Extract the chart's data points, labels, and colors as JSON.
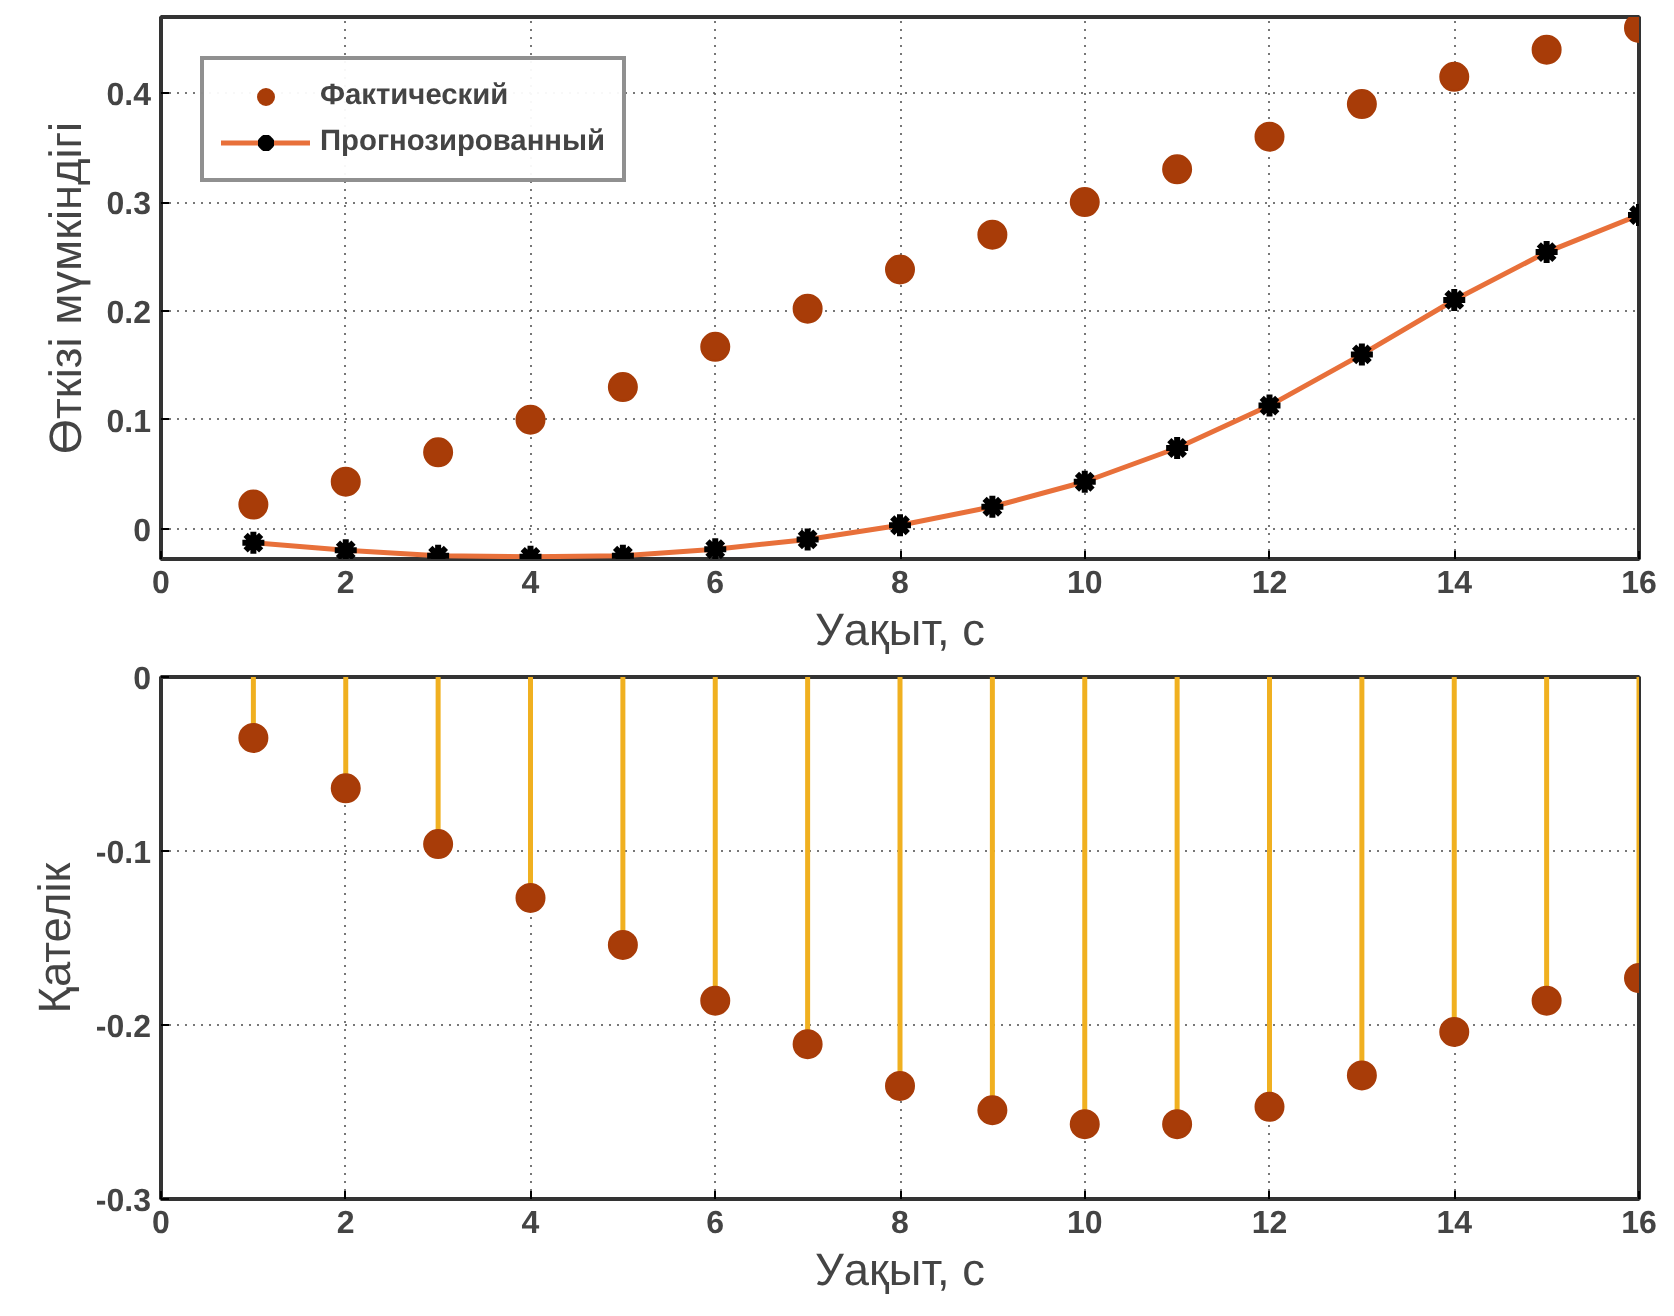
{
  "chart_data": [
    {
      "type": "line",
      "xlabel": "Уақыт, с",
      "ylabel": "Өткізі мүмкіндігі",
      "x": [
        1,
        2,
        3,
        4,
        5,
        6,
        7,
        8,
        9,
        10,
        11,
        12,
        13,
        14,
        15,
        16
      ],
      "series": [
        {
          "name": "Фактический",
          "type": "scatter",
          "marker": "circle",
          "color": "#a83c08",
          "values": [
            0.022,
            0.043,
            0.07,
            0.1,
            0.13,
            0.167,
            0.202,
            0.238,
            0.27,
            0.3,
            0.33,
            0.36,
            0.39,
            0.415,
            0.44,
            0.46
          ]
        },
        {
          "name": "Прогнозированный",
          "type": "line",
          "marker": "cross",
          "color": "#e8703a",
          "values": [
            -0.013,
            -0.02,
            -0.025,
            -0.026,
            -0.025,
            -0.019,
            -0.01,
            0.003,
            0.02,
            0.043,
            0.074,
            0.113,
            0.16,
            0.21,
            0.254,
            0.288
          ]
        }
      ],
      "xlim": [
        0,
        16
      ],
      "xticks": [
        0,
        2,
        4,
        6,
        8,
        10,
        12,
        14,
        16
      ],
      "ylim": [
        -0.028,
        0.47
      ],
      "yticks": [
        0,
        0.1,
        0.2,
        0.3,
        0.4
      ],
      "grid": true,
      "legend": "top left"
    },
    {
      "type": "lollipop",
      "xlabel": "Уақыт, с",
      "ylabel": "Қателік",
      "x": [
        1,
        2,
        3,
        4,
        5,
        6,
        7,
        8,
        9,
        10,
        11,
        12,
        13,
        14,
        15,
        16
      ],
      "series": [
        {
          "color": "#a83c08",
          "values": [
            -0.035,
            -0.064,
            -0.096,
            -0.127,
            -0.154,
            -0.186,
            -0.211,
            -0.235,
            -0.249,
            -0.257,
            -0.257,
            -0.247,
            -0.229,
            -0.204,
            -0.186,
            -0.173
          ]
        }
      ],
      "xlim": [
        0,
        16
      ],
      "xticks": [
        0,
        2,
        4,
        6,
        8,
        10,
        12,
        14,
        16
      ],
      "ylim": [
        -0.3,
        0
      ],
      "yticks": [
        -0.3,
        -0.2,
        -0.1,
        0
      ],
      "grid": true
    }
  ]
}
